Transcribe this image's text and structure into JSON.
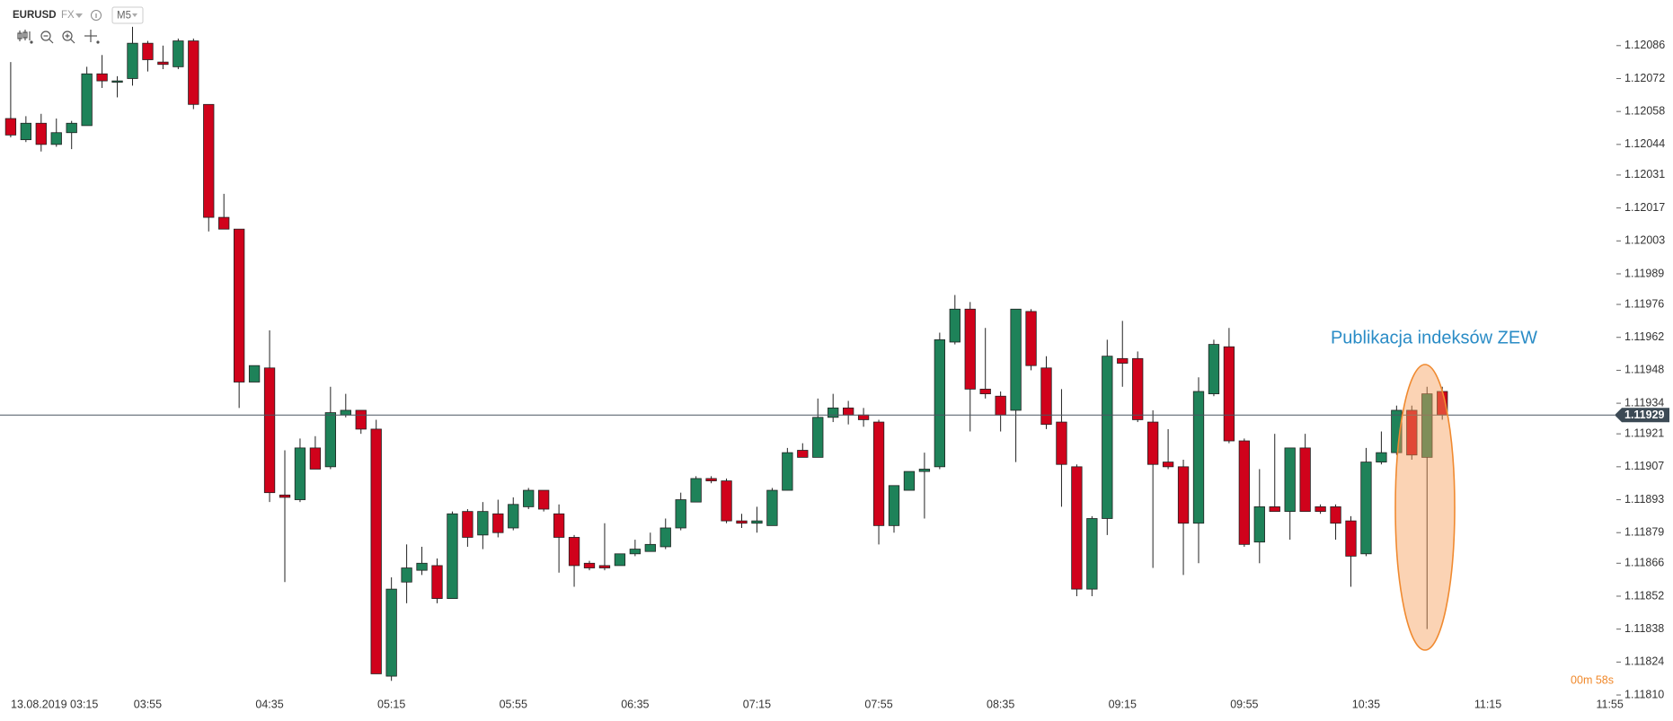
{
  "chart_data": {
    "type": "candlestick",
    "symbol": "EURUSD",
    "market": "FX",
    "interval": "M5",
    "annotation": "Publikacja indeksów ZEW",
    "countdown": "00m 58s",
    "last_price": 1.11929,
    "up_color": "#1e8259",
    "down_color": "#d0021b",
    "categories": [
      null,
      "13.08.2019 03:15",
      null,
      null,
      null,
      null,
      null,
      null,
      null,
      "03:55",
      null,
      null,
      null,
      null,
      null,
      null,
      null,
      "04:35",
      null,
      null,
      null,
      null,
      null,
      null,
      null,
      "05:15",
      null,
      null,
      null,
      null,
      null,
      null,
      null,
      "05:55",
      null,
      null,
      null,
      null,
      null,
      null,
      null,
      "06:35",
      null,
      null,
      null,
      null,
      null,
      null,
      null,
      "07:15",
      null,
      null,
      null,
      null,
      null,
      null,
      null,
      "07:55",
      null,
      null,
      null,
      null,
      null,
      null,
      null,
      "08:35",
      null,
      null,
      null,
      null,
      null,
      null,
      null,
      "09:15",
      null,
      null,
      null,
      null,
      null,
      null,
      null,
      "09:55",
      null,
      null,
      null,
      null,
      null,
      null,
      null,
      "10:35",
      null,
      null,
      null,
      null,
      null,
      null,
      null,
      "11:15",
      null,
      null,
      null,
      null,
      null,
      null,
      null,
      "11:55"
    ],
    "open": [
      1.12055,
      1.12046,
      1.12053,
      1.12044,
      1.12049,
      1.12052,
      1.12074,
      1.12071,
      1.12072,
      1.12087,
      1.12079,
      1.12077,
      1.12088,
      1.12061,
      1.12013,
      1.12008,
      1.11943,
      1.11949,
      1.11895,
      1.11893,
      1.11915,
      1.11907,
      1.11929,
      1.11931,
      1.11923,
      1.11818,
      1.11858,
      1.11863,
      1.11865,
      1.11851,
      1.11888,
      1.11878,
      1.11887,
      1.11881,
      1.1189,
      1.11897,
      1.11887,
      1.11877,
      1.11866,
      1.11865,
      1.11865,
      1.1187,
      1.11871,
      1.11873,
      1.11881,
      1.11892,
      1.11902,
      1.11901,
      1.11884,
      1.11883,
      1.11882,
      1.11897,
      1.11914,
      1.11911,
      1.11928,
      1.11932,
      1.11929,
      1.11926,
      1.11882,
      1.11897,
      1.11905,
      1.11907,
      1.1196,
      1.11974,
      1.1194,
      1.11937,
      1.11931,
      1.11973,
      1.11949,
      1.11926,
      1.11907,
      1.11855,
      1.11885,
      1.11953,
      1.11953,
      1.11926,
      1.11909,
      1.11907,
      1.11883,
      1.11938,
      1.11958,
      1.11918,
      1.11875,
      1.1189,
      1.11888,
      1.11915,
      1.1189,
      1.1189,
      1.11884,
      1.1187,
      1.11909,
      1.11913,
      1.11931,
      1.11911,
      1.11939,
      null,
      null,
      null,
      null,
      null,
      null,
      null,
      null,
      null,
      null,
      null
    ],
    "high": [
      1.12079,
      1.12056,
      1.12057,
      1.12055,
      1.12054,
      1.12077,
      1.12082,
      1.12073,
      1.12094,
      1.12088,
      1.12086,
      1.12089,
      1.12089,
      1.12061,
      1.12023,
      1.12008,
      1.1195,
      1.11965,
      1.11914,
      1.11919,
      1.1192,
      1.11941,
      1.11938,
      1.11931,
      1.11927,
      1.1186,
      1.11874,
      1.11873,
      1.11868,
      1.11888,
      1.11889,
      1.11892,
      1.11893,
      1.11894,
      1.11898,
      1.11897,
      1.11891,
      1.11878,
      1.11867,
      1.11883,
      1.1187,
      1.11876,
      1.11879,
      1.11885,
      1.11896,
      1.11903,
      1.11903,
      1.11902,
      1.11887,
      1.1189,
      1.11898,
      1.11915,
      1.11917,
      1.11936,
      1.11938,
      1.11935,
      1.11932,
      1.11927,
      1.11899,
      1.11905,
      1.11913,
      1.11964,
      1.1198,
      1.11977,
      1.11966,
      1.11939,
      1.11974,
      1.11974,
      1.11954,
      1.1194,
      1.11908,
      1.11886,
      1.11961,
      1.11969,
      1.11956,
      1.11931,
      1.11923,
      1.1191,
      1.11945,
      1.11961,
      1.11966,
      1.11919,
      1.11906,
      1.11921,
      1.11915,
      1.11921,
      1.11891,
      1.11891,
      1.11886,
      1.11915,
      1.11922,
      1.11933,
      1.11933,
      1.11941,
      1.11941,
      null,
      null,
      null,
      null,
      null,
      null,
      null,
      null,
      null,
      null,
      null
    ],
    "low": [
      1.12047,
      1.12045,
      1.12041,
      1.12043,
      1.12042,
      1.12052,
      1.12068,
      1.12064,
      1.12069,
      1.12075,
      1.12076,
      1.12076,
      1.12059,
      1.12007,
      1.12008,
      1.11932,
      1.11943,
      1.11892,
      1.11858,
      1.11892,
      1.11906,
      1.11906,
      1.11928,
      1.11921,
      1.11819,
      1.11816,
      1.11849,
      1.11861,
      1.11849,
      1.11851,
      1.11873,
      1.11872,
      1.11877,
      1.1188,
      1.11889,
      1.11888,
      1.11862,
      1.11856,
      1.11863,
      1.11863,
      1.11865,
      1.11869,
      1.11871,
      1.11872,
      1.1188,
      1.11892,
      1.119,
      1.11883,
      1.11881,
      1.11879,
      1.11882,
      1.11897,
      1.11911,
      1.11911,
      1.11926,
      1.11925,
      1.11924,
      1.11874,
      1.11879,
      1.11897,
      1.11885,
      1.11906,
      1.11959,
      1.11922,
      1.11936,
      1.11922,
      1.11909,
      1.11948,
      1.11923,
      1.1189,
      1.11852,
      1.11852,
      1.11878,
      1.11941,
      1.11926,
      1.11864,
      1.11906,
      1.11861,
      1.11866,
      1.11937,
      1.11917,
      1.11873,
      1.11866,
      1.11888,
      1.11876,
      1.11888,
      1.11887,
      1.11876,
      1.11856,
      1.11869,
      1.11908,
      1.11912,
      1.1191,
      1.11838,
      1.11927,
      null,
      null,
      null,
      null,
      null,
      null,
      null,
      null,
      null,
      null,
      null
    ],
    "close": [
      1.12048,
      1.12053,
      1.12044,
      1.12049,
      1.12053,
      1.12074,
      1.12071,
      1.12071,
      1.12087,
      1.1208,
      1.12078,
      1.12088,
      1.12061,
      1.12013,
      1.12008,
      1.11943,
      1.1195,
      1.11896,
      1.11894,
      1.11915,
      1.11906,
      1.1193,
      1.11931,
      1.11923,
      1.11819,
      1.11855,
      1.11864,
      1.11866,
      1.11851,
      1.11887,
      1.11877,
      1.11888,
      1.11879,
      1.11891,
      1.11897,
      1.11889,
      1.11877,
      1.11865,
      1.11864,
      1.11864,
      1.1187,
      1.11872,
      1.11874,
      1.11881,
      1.11893,
      1.11902,
      1.11901,
      1.11884,
      1.11883,
      1.11884,
      1.11897,
      1.11913,
      1.11911,
      1.11928,
      1.11932,
      1.11929,
      1.11927,
      1.11882,
      1.11899,
      1.11905,
      1.11906,
      1.11961,
      1.11974,
      1.1194,
      1.11938,
      1.11929,
      1.11974,
      1.1195,
      1.11925,
      1.11908,
      1.11855,
      1.11885,
      1.11954,
      1.11951,
      1.11927,
      1.11908,
      1.11907,
      1.11883,
      1.11939,
      1.11959,
      1.11918,
      1.11874,
      1.1189,
      1.11888,
      1.11915,
      1.11888,
      1.11888,
      1.11883,
      1.11869,
      1.11909,
      1.11913,
      1.11931,
      1.11912,
      1.11938,
      1.11929,
      null,
      null,
      null,
      null,
      null,
      null,
      null,
      null,
      null,
      null,
      null
    ],
    "ylim": [
      1.11802,
      1.12105
    ],
    "yticks": [
      1.12086,
      1.12072,
      1.12058,
      1.12044,
      1.12031,
      1.12017,
      1.12003,
      1.11989,
      1.11976,
      1.11962,
      1.11948,
      1.11934,
      1.11921,
      1.11907,
      1.11893,
      1.11879,
      1.11866,
      1.11852,
      1.11838,
      1.11824,
      {
        "value": 1.1181,
        "label": "1.11810"
      }
    ]
  }
}
